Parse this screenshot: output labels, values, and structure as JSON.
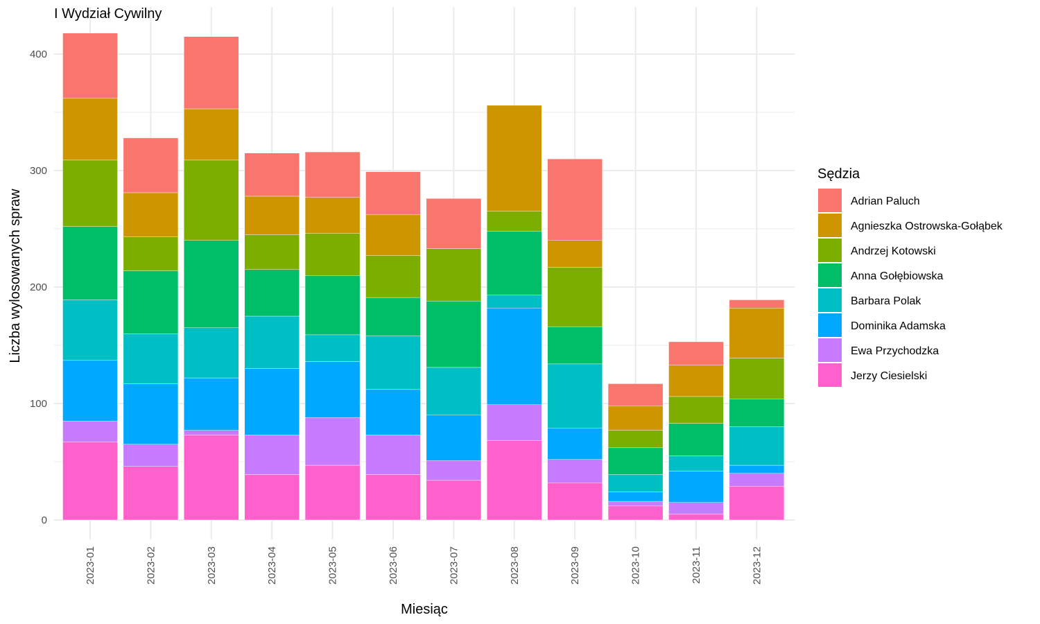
{
  "chart_data": {
    "type": "bar",
    "stacked": true,
    "title": "I Wydział Cywilny",
    "xlabel": "Miesiąc",
    "ylabel": "Liczba wylosowanych spraw",
    "ylim": [
      0,
      420
    ],
    "yticks": [
      0,
      100,
      200,
      300,
      400
    ],
    "grid": true,
    "legend_title": "Sędzia",
    "legend_position": "right",
    "categories": [
      "2023-01",
      "2023-02",
      "2023-03",
      "2023-04",
      "2023-05",
      "2023-06",
      "2023-07",
      "2023-08",
      "2023-09",
      "2023-10",
      "2023-11",
      "2023-12"
    ],
    "series": [
      {
        "name": "Jerzy Ciesielski",
        "color": "#FF61CC",
        "values": [
          67,
          46,
          73,
          39,
          47,
          39,
          34,
          68,
          32,
          12,
          5,
          29
        ]
      },
      {
        "name": "Ewa Przychodzka",
        "color": "#C77CFF",
        "values": [
          18,
          19,
          4,
          34,
          41,
          34,
          17,
          31,
          20,
          4,
          10,
          11
        ]
      },
      {
        "name": "Dominika Adamska",
        "color": "#00A9FF",
        "values": [
          52,
          52,
          45,
          57,
          48,
          39,
          39,
          83,
          27,
          8,
          27,
          7
        ]
      },
      {
        "name": "Barbara Polak",
        "color": "#00BFC4",
        "values": [
          52,
          43,
          43,
          45,
          23,
          46,
          41,
          11,
          55,
          15,
          13,
          33
        ]
      },
      {
        "name": "Anna Gołębiowska",
        "color": "#00BE67",
        "values": [
          63,
          54,
          75,
          40,
          51,
          33,
          57,
          55,
          32,
          23,
          28,
          24
        ]
      },
      {
        "name": "Andrzej Kotowski",
        "color": "#7CAE00",
        "values": [
          57,
          29,
          69,
          30,
          36,
          36,
          45,
          17,
          51,
          15,
          23,
          35
        ]
      },
      {
        "name": "Agnieszka Ostrowska-Gołąbek",
        "color": "#CD9600",
        "values": [
          53,
          38,
          44,
          33,
          31,
          35,
          0,
          91,
          23,
          21,
          27,
          43
        ]
      },
      {
        "name": "Adrian Paluch",
        "color": "#F8766D",
        "values": [
          56,
          47,
          62,
          37,
          39,
          37,
          43,
          0,
          70,
          19,
          20,
          7
        ]
      }
    ],
    "legend_order": [
      "Adrian Paluch",
      "Agnieszka Ostrowska-Gołąbek",
      "Andrzej Kotowski",
      "Anna Gołębiowska",
      "Barbara Polak",
      "Dominika Adamska",
      "Ewa Przychodzka",
      "Jerzy Ciesielski"
    ]
  }
}
